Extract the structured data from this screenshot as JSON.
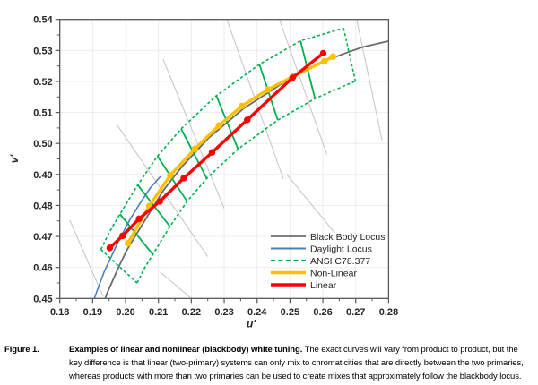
{
  "chart_data": {
    "type": "line",
    "title": "",
    "xlabel": "u'",
    "ylabel": "v'",
    "xlim": [
      0.18,
      0.28
    ],
    "ylim": [
      0.45,
      0.54
    ],
    "x_ticks": [
      "0.18",
      "0.19",
      "0.20",
      "0.21",
      "0.22",
      "0.23",
      "0.24",
      "0.25",
      "0.26",
      "0.27",
      "0.28"
    ],
    "y_ticks": [
      "0.45",
      "0.46",
      "0.47",
      "0.48",
      "0.49",
      "0.50",
      "0.51",
      "0.52",
      "0.53",
      "0.54"
    ],
    "grid": true,
    "legend_position": "inside-bottom-right",
    "series": [
      {
        "name": "Black Body Locus",
        "type": "line",
        "color": "#6a6a6a",
        "width": 1.8,
        "points": [
          [
            0.1938,
            0.45
          ],
          [
            0.1946,
            0.4522
          ],
          [
            0.1981,
            0.4606
          ],
          [
            0.2004,
            0.4656
          ],
          [
            0.2033,
            0.4707
          ],
          [
            0.2055,
            0.4745
          ],
          [
            0.2086,
            0.4799
          ],
          [
            0.2114,
            0.4847
          ],
          [
            0.2142,
            0.4886
          ],
          [
            0.2173,
            0.4927
          ],
          [
            0.2208,
            0.4967
          ],
          [
            0.2251,
            0.5016
          ],
          [
            0.2309,
            0.5068
          ],
          [
            0.2358,
            0.5112
          ],
          [
            0.2435,
            0.5165
          ],
          [
            0.2505,
            0.5214
          ],
          [
            0.2554,
            0.5238
          ],
          [
            0.2625,
            0.5274
          ],
          [
            0.2681,
            0.5296
          ],
          [
            0.2722,
            0.5311
          ],
          [
            0.28,
            0.533
          ]
        ]
      },
      {
        "name": "Daylight Locus",
        "type": "line",
        "color": "#4d7ebf",
        "width": 1.6,
        "points": [
          [
            0.1905,
            0.45
          ],
          [
            0.1935,
            0.4586
          ],
          [
            0.1978,
            0.4683
          ],
          [
            0.2012,
            0.4752
          ],
          [
            0.2044,
            0.4807
          ],
          [
            0.2075,
            0.4856
          ],
          [
            0.2105,
            0.4892
          ]
        ]
      },
      {
        "name": "ANSI C78.377",
        "type": "band",
        "color": "#00B050",
        "width": 1.6,
        "dash": "3.2,2.6",
        "upper": [
          [
            0.1925,
            0.4658
          ],
          [
            0.1952,
            0.4716
          ],
          [
            0.1983,
            0.4772
          ],
          [
            0.2037,
            0.4866
          ],
          [
            0.2097,
            0.4959
          ],
          [
            0.2169,
            0.5047
          ],
          [
            0.2276,
            0.5154
          ],
          [
            0.2407,
            0.5255
          ],
          [
            0.2532,
            0.5331
          ],
          [
            0.2663,
            0.5372
          ]
        ],
        "lower": [
          [
            0.2035,
            0.455
          ],
          [
            0.2056,
            0.4595
          ],
          [
            0.2083,
            0.4642
          ],
          [
            0.2135,
            0.4732
          ],
          [
            0.2187,
            0.4813
          ],
          [
            0.2247,
            0.4887
          ],
          [
            0.2342,
            0.4982
          ],
          [
            0.2463,
            0.5075
          ],
          [
            0.2576,
            0.5145
          ],
          [
            0.2699,
            0.5201
          ]
        ],
        "divider_indices": [
          2,
          3,
          4,
          5,
          6,
          7,
          8
        ]
      },
      {
        "name": "Non-Linear",
        "type": "line+markers",
        "color": "#FFC000",
        "width": 3.4,
        "marker_r": 3.7,
        "points": [
          [
            0.2007,
            0.4678
          ],
          [
            0.2072,
            0.4798
          ],
          [
            0.2136,
            0.4897
          ],
          [
            0.2211,
            0.4983
          ],
          [
            0.2284,
            0.5058
          ],
          [
            0.2354,
            0.5121
          ],
          [
            0.2433,
            0.5174
          ],
          [
            0.2511,
            0.5217
          ],
          [
            0.2604,
            0.5265
          ],
          [
            0.2631,
            0.528
          ]
        ]
      },
      {
        "name": "Linear",
        "type": "line+markers",
        "color": "#FF0000",
        "width": 3.4,
        "marker_r": 3.7,
        "points": [
          [
            0.1952,
            0.4663
          ],
          [
            0.1991,
            0.4702
          ],
          [
            0.2041,
            0.4757
          ],
          [
            0.2104,
            0.4813
          ],
          [
            0.2177,
            0.4888
          ],
          [
            0.2263,
            0.4971
          ],
          [
            0.237,
            0.5076
          ],
          [
            0.2508,
            0.5212
          ],
          [
            0.2601,
            0.5291
          ]
        ]
      }
    ],
    "iso_cct_lines": {
      "color": "#c9c9c9",
      "width": 1.1,
      "segments": [
        [
          [
            0.183,
            0.4753
          ],
          [
            0.1932,
            0.4506
          ]
        ],
        [
          [
            0.1972,
            0.5063
          ],
          [
            0.225,
            0.4635
          ]
        ],
        [
          [
            0.2114,
            0.5272
          ],
          [
            0.23,
            0.479
          ]
        ],
        [
          [
            0.2298,
            0.543
          ],
          [
            0.248,
            0.4885
          ]
        ],
        [
          [
            0.2458,
            0.543
          ],
          [
            0.2612,
            0.4965
          ]
        ],
        [
          [
            0.2697,
            0.543
          ],
          [
            0.278,
            0.501
          ]
        ],
        [
          [
            0.2491,
            0.4899
          ],
          [
            0.2636,
            0.4712
          ]
        ],
        [
          [
            0.2105,
            0.4585
          ],
          [
            0.22,
            0.45
          ]
        ]
      ]
    },
    "colors": {
      "axis": "#595959",
      "tick_label": "#262626",
      "grid": "#ededed",
      "blackbody": "#6a6a6a",
      "daylight": "#4d7ebf",
      "ansi": "#00B050",
      "nonlinear": "#FFC000",
      "linear": "#FF0000",
      "iso": "#c9c9c9"
    }
  },
  "legend": {
    "items": [
      {
        "label": "Black Body Locus",
        "color": "#7f7f7f",
        "dash": "",
        "thick": 2
      },
      {
        "label": "Daylight Locus",
        "color": "#4d7ebf",
        "dash": "",
        "thick": 2
      },
      {
        "label": "ANSI C78.377",
        "color": "#00B050",
        "dash": "5,3.5",
        "thick": 2
      },
      {
        "label": "Non-Linear",
        "color": "#FFC000",
        "dash": "",
        "thick": 3.4
      },
      {
        "label": "Linear",
        "color": "#FF0000",
        "dash": "",
        "thick": 3.4
      }
    ]
  },
  "caption": {
    "label": "Figure 1.",
    "bold_text": "Examples of linear and nonlinear (blackbody) white tuning.",
    "text": " The exact curves will vary from product to product, but the key difference is that linear (two-primary) systems can only mix to chromaticities that are directly between the two primaries, whereas products with more than two primaries can be used to create mixes that approximately follow the blackbody locus."
  }
}
